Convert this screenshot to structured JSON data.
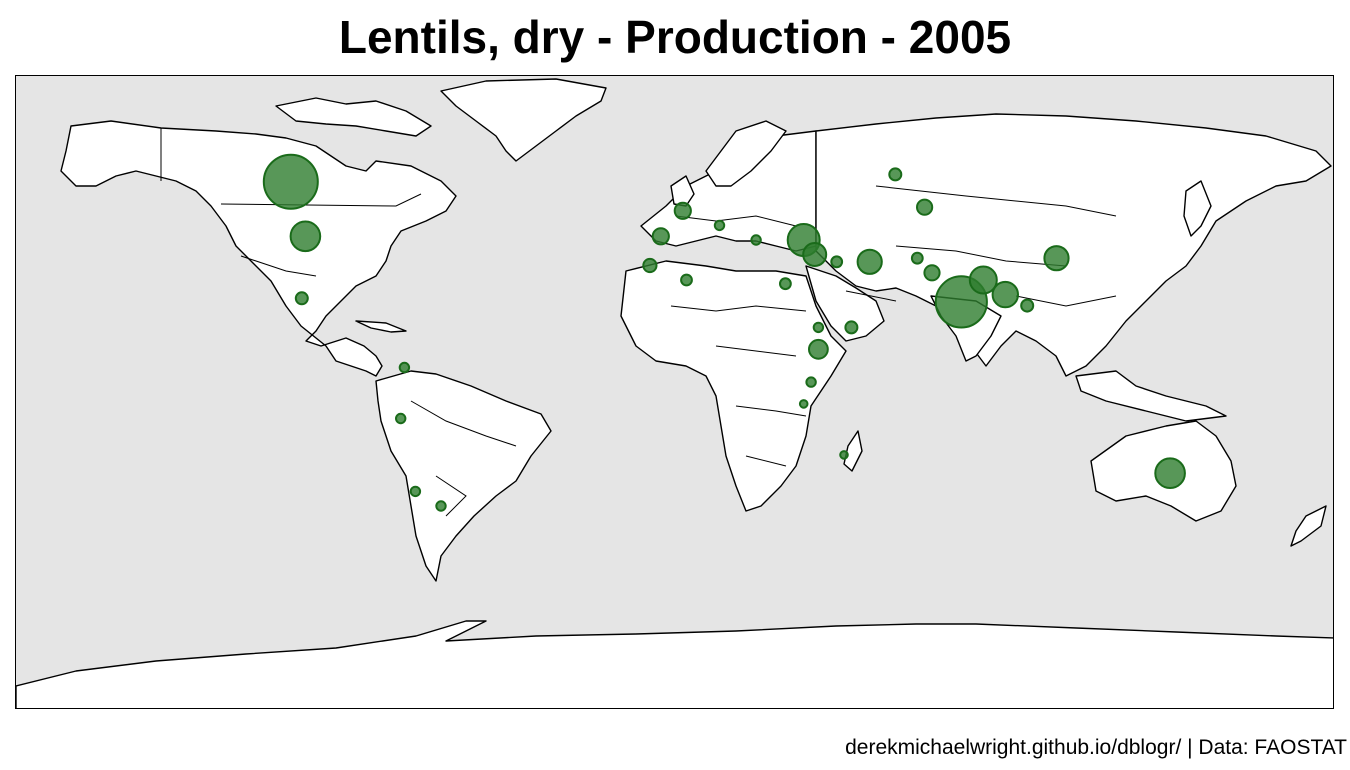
{
  "title": "Lentils, dry - Production - 2005",
  "caption": "derekmichaelwright.github.io/dblogr/ | Data: FAOSTAT",
  "colors": {
    "ocean": "#e5e5e5",
    "land": "#ffffff",
    "border": "#000000",
    "bubble_fill": "#2e7d2e",
    "bubble_stroke": "#1a6b1a"
  },
  "map": {
    "projection": "equirectangular",
    "lon_range": [
      -180,
      180
    ],
    "lat_range": [
      -90,
      84
    ]
  },
  "production_points": [
    {
      "name": "Canada",
      "lon": -105,
      "lat": 55,
      "level": 1.0
    },
    {
      "name": "India",
      "lon": 78,
      "lat": 22,
      "level": 0.9
    },
    {
      "name": "Turkey",
      "lon": 35,
      "lat": 39,
      "level": 0.35
    },
    {
      "name": "Australia",
      "lon": 135,
      "lat": -25,
      "level": 0.3
    },
    {
      "name": "United States",
      "lon": -101,
      "lat": 40,
      "level": 0.3
    },
    {
      "name": "Nepal",
      "lon": 84,
      "lat": 28,
      "level": 0.25
    },
    {
      "name": "Bangladesh",
      "lon": 90,
      "lat": 24,
      "level": 0.22
    },
    {
      "name": "China",
      "lon": 104,
      "lat": 34,
      "level": 0.2
    },
    {
      "name": "Iran",
      "lon": 53,
      "lat": 33,
      "level": 0.2
    },
    {
      "name": "Syria",
      "lon": 38,
      "lat": 35,
      "level": 0.18
    },
    {
      "name": "Ethiopia",
      "lon": 39,
      "lat": 9,
      "level": 0.12
    },
    {
      "name": "Spain",
      "lon": -4,
      "lat": 40,
      "level": 0.09
    },
    {
      "name": "France",
      "lon": 2,
      "lat": 47,
      "level": 0.09
    },
    {
      "name": "Kazakhstan",
      "lon": 68,
      "lat": 48,
      "level": 0.08
    },
    {
      "name": "Pakistan",
      "lon": 70,
      "lat": 30,
      "level": 0.08
    },
    {
      "name": "Morocco",
      "lon": -7,
      "lat": 32,
      "level": 0.06
    },
    {
      "name": "Russia",
      "lon": 60,
      "lat": 57,
      "level": 0.05
    },
    {
      "name": "Mexico",
      "lon": -102,
      "lat": 23,
      "level": 0.05
    },
    {
      "name": "Myanmar",
      "lon": 96,
      "lat": 21,
      "level": 0.05
    },
    {
      "name": "Yemen",
      "lon": 48,
      "lat": 15,
      "level": 0.05
    },
    {
      "name": "Iraq",
      "lon": 44,
      "lat": 33,
      "level": 0.04
    },
    {
      "name": "Egypt",
      "lon": 30,
      "lat": 27,
      "level": 0.04
    },
    {
      "name": "Algeria",
      "lon": 3,
      "lat": 28,
      "level": 0.04
    },
    {
      "name": "Afghanistan",
      "lon": 66,
      "lat": 34,
      "level": 0.04
    },
    {
      "name": "Argentina",
      "lon": -64,
      "lat": -34,
      "level": 0.03
    },
    {
      "name": "Chile",
      "lon": -71,
      "lat": -30,
      "level": 0.03
    },
    {
      "name": "Peru",
      "lon": -75,
      "lat": -10,
      "level": 0.03
    },
    {
      "name": "Colombia",
      "lon": -74,
      "lat": 4,
      "level": 0.03
    },
    {
      "name": "Italy",
      "lon": 12,
      "lat": 43,
      "level": 0.03
    },
    {
      "name": "Greece",
      "lon": 22,
      "lat": 39,
      "level": 0.03
    },
    {
      "name": "Eritrea",
      "lon": 39,
      "lat": 15,
      "level": 0.03
    },
    {
      "name": "Kenya",
      "lon": 37,
      "lat": 0,
      "level": 0.03
    },
    {
      "name": "Madagascar",
      "lon": 46,
      "lat": -20,
      "level": 0.02
    },
    {
      "name": "Tanzania",
      "lon": 35,
      "lat": -6,
      "level": 0.02
    }
  ]
}
